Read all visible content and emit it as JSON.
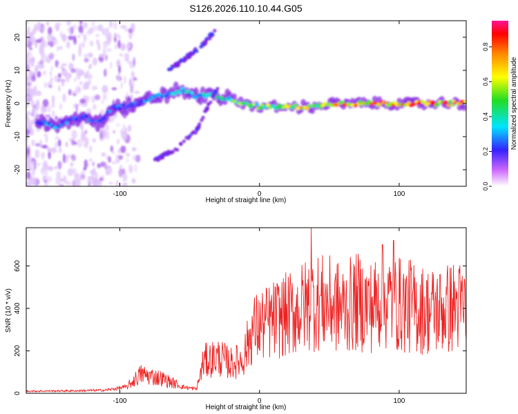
{
  "title": "S126.2026.110.10.44.G05",
  "chart_data": [
    {
      "type": "heatmap",
      "title": "S126.2026.110.10.44.G05",
      "xlabel": "Height of straight line (km)",
      "ylabel": "Frequency (Hz)",
      "xlim": [
        -167,
        148
      ],
      "ylim": [
        -25,
        25
      ],
      "xticks": [
        -100,
        0,
        100
      ],
      "yticks": [
        -20,
        -10,
        0,
        10,
        20
      ],
      "ridge": {
        "description": "dominant frequency track",
        "x": [
          -155,
          -145,
          -135,
          -125,
          -115,
          -105,
          -95,
          -85,
          -75,
          -65,
          -55,
          -45,
          -35,
          -28,
          -20,
          -10,
          0,
          10,
          20,
          30,
          40,
          50,
          60,
          70,
          80,
          90,
          100,
          110,
          120,
          130,
          140,
          148
        ],
        "y": [
          -6,
          -7,
          -5,
          -4,
          -6,
          -1,
          -1,
          0,
          2,
          3,
          4,
          2,
          3,
          2,
          1,
          0,
          -1,
          -1,
          -1,
          -1,
          -1,
          0,
          0,
          0,
          0,
          0,
          0,
          0,
          0,
          0,
          0,
          0
        ],
        "amplitude": [
          0.3,
          0.35,
          0.3,
          0.3,
          0.25,
          0.3,
          0.3,
          0.3,
          0.35,
          0.35,
          0.4,
          0.35,
          0.45,
          0.5,
          0.55,
          0.6,
          0.6,
          0.65,
          0.7,
          0.8,
          0.6,
          0.75,
          0.85,
          0.9,
          0.9,
          0.9,
          0.95,
          0.95,
          0.95,
          0.95,
          0.95,
          0.9
        ]
      },
      "secondary_branches": [
        {
          "x": [
            -75,
            -60,
            -45,
            -30
          ],
          "y": [
            -17,
            -14,
            -8,
            5
          ]
        },
        {
          "x": [
            -65,
            -52,
            -40,
            -32
          ],
          "y": [
            10,
            14,
            18,
            22
          ]
        }
      ],
      "colorbar": {
        "label": "Normalized spectral amplitude",
        "range": [
          0,
          0.95
        ],
        "ticks": [
          0.0,
          0.2,
          0.4,
          0.6,
          0.8
        ],
        "colors": [
          "#ffffff",
          "#bb33ff",
          "#3322ff",
          "#00e5ff",
          "#22dd22",
          "#ffff00",
          "#ff8800",
          "#ff0000",
          "#ff1493"
        ]
      }
    },
    {
      "type": "line",
      "xlabel": "Height of straight line (km)",
      "ylabel": "SNR (10 * v/v)",
      "xlim": [
        -167,
        148
      ],
      "ylim": [
        0,
        780
      ],
      "xticks": [
        -100,
        0,
        100
      ],
      "yticks": [
        0,
        200,
        400,
        600
      ],
      "color": "#ee2222",
      "envelope": {
        "x": [
          -167,
          -130,
          -110,
          -95,
          -85,
          -70,
          -55,
          -45,
          -40,
          -30,
          -20,
          -12,
          -5,
          5,
          15,
          25,
          35,
          40,
          50,
          60,
          70,
          80,
          90,
          100,
          110,
          120,
          130,
          140,
          148
        ],
        "y": [
          10,
          12,
          15,
          30,
          90,
          70,
          30,
          20,
          150,
          170,
          140,
          160,
          300,
          330,
          360,
          380,
          420,
          430,
          420,
          400,
          430,
          410,
          440,
          420,
          400,
          390,
          390,
          410,
          400
        ]
      },
      "peaks": [
        {
          "x": 37,
          "y": 780
        },
        {
          "x": 96,
          "y": 720
        },
        {
          "x": 88,
          "y": 700
        },
        {
          "x": 108,
          "y": 630
        }
      ]
    }
  ]
}
